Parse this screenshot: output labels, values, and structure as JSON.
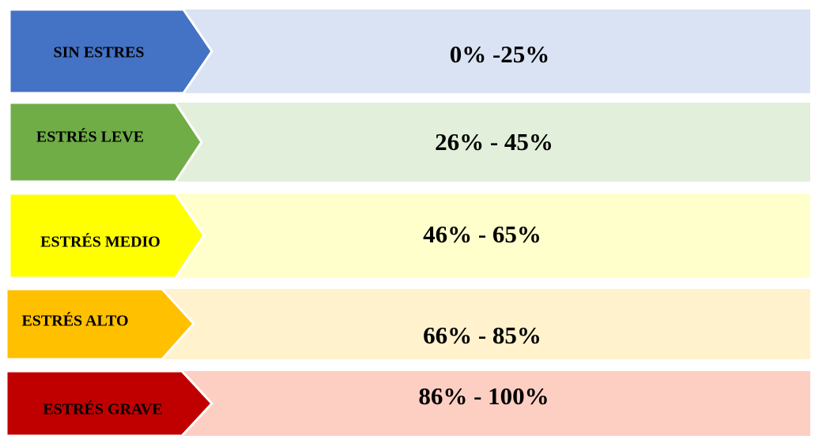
{
  "levels": [
    {
      "label": "SIN ESTRES",
      "range": "0% -25%"
    },
    {
      "label": "ESTRÉS LEVE",
      "range": "26% - 45%"
    },
    {
      "label": "ESTRÉS MEDIO",
      "range": "46% - 65%"
    },
    {
      "label": "ESTRÉS ALTO",
      "range": "66% - 85%"
    },
    {
      "label": "ESTRÉS GRAVE",
      "range": "86% - 100%"
    }
  ]
}
